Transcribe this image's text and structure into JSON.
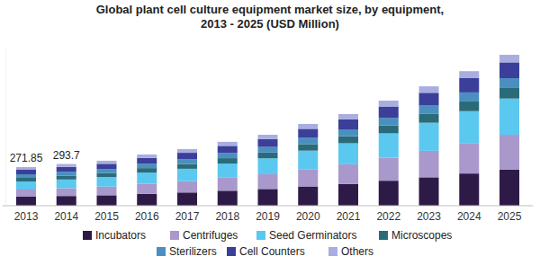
{
  "chart_data": {
    "type": "bar",
    "title": "Global plant cell culture equipment market size, by equipment, 2013 - 2025 (USD Million)",
    "stacked": true,
    "legend": "bottom",
    "grid": false,
    "tick_labels": "x",
    "categories": [
      "2013",
      "2014",
      "2015",
      "2016",
      "2017",
      "2018",
      "2019",
      "2020",
      "2021",
      "2022",
      "2023",
      "2024",
      "2025"
    ],
    "ylim": [
      0,
      1100
    ],
    "yticks": [
      0
    ],
    "annotations": [
      {
        "text": "271.85",
        "x": "2013"
      },
      {
        "text": "293.7",
        "x": "2014"
      }
    ],
    "series": [
      {
        "name": "Incubators",
        "color": "#2e1a47",
        "values": [
          63.2,
          68.3,
          73.6,
          83.9,
          93.1,
          105.5,
          117.8,
          135.7,
          152.9,
          175.9,
          199.9,
          226.6,
          254.9
        ]
      },
      {
        "name": "Centrifuges",
        "color": "#a898cc",
        "values": [
          50.6,
          54.7,
          61.0,
          70.9,
          79.6,
          91.6,
          103.8,
          121.3,
          138.7,
          161.8,
          186.5,
          214.2,
          244.3
        ]
      },
      {
        "name": "Seed Germinators",
        "color": "#5bc8f0",
        "values": [
          56.9,
          61.5,
          67.6,
          78.1,
          87.2,
          99.7,
          111.8,
          130.5,
          147.7,
          171.4,
          197.4,
          224.7,
          254.9
        ]
      },
      {
        "name": "Microscopes",
        "color": "#2a6b7a",
        "values": [
          25.3,
          27.3,
          28.4,
          31.7,
          34.2,
          37.7,
          40.9,
          46.0,
          50.3,
          56.2,
          62.2,
          68.3,
          74.3
        ]
      },
      {
        "name": "Sterilizers",
        "color": "#4a8fc0",
        "values": [
          25.3,
          27.3,
          28.1,
          31.0,
          33.4,
          36.4,
          39.4,
          44.3,
          47.7,
          53.2,
          58.8,
          63.5,
          69.0
        ]
      },
      {
        "name": "Cell Counters",
        "color": "#3b3f9a",
        "values": [
          31.6,
          34.1,
          36.3,
          41.0,
          45.0,
          50.3,
          55.4,
          63.3,
          70.3,
          79.8,
          89.9,
          100.5,
          111.5
        ]
      },
      {
        "name": "Others",
        "color": "#a9aee0",
        "values": [
          18.95,
          20.5,
          21.5,
          23.8,
          25.9,
          28.3,
          30.4,
          34.5,
          37.4,
          41.4,
          45.4,
          49.3,
          53.1
        ]
      }
    ]
  }
}
